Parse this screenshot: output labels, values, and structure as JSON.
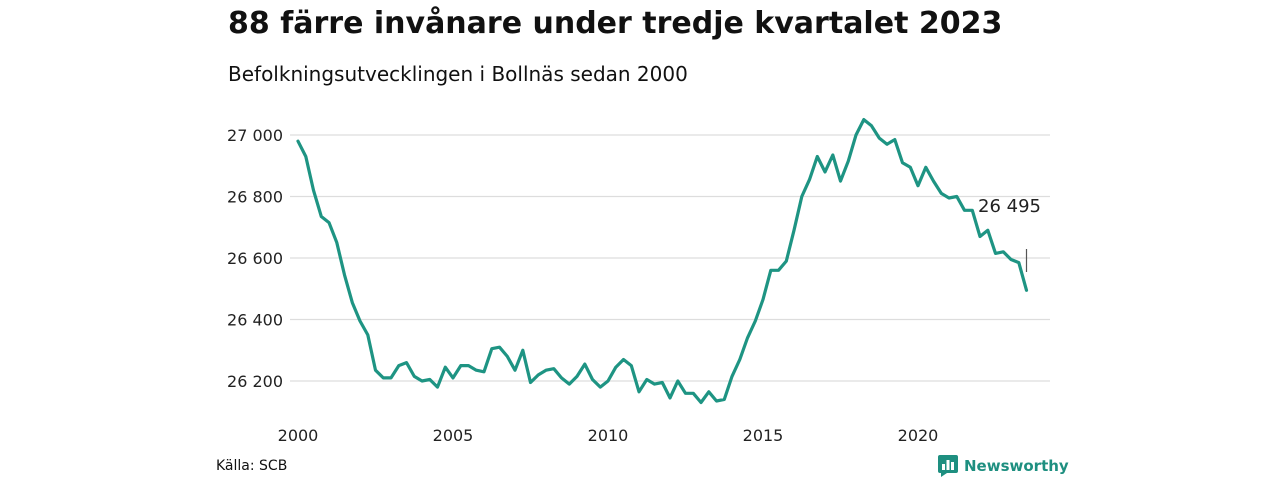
{
  "title": "88 färre invånare under tredje kvartalet 2023",
  "subtitle": "Befolkningsutvecklingen i Bollnäs sedan 2000",
  "source": "Källa: SCB",
  "brand": "Newsworthy",
  "colors": {
    "line": "#1e9483",
    "grid": "#dddddd",
    "brand": "#1e8f80"
  },
  "chart_data": {
    "type": "line",
    "x_start": 2000,
    "x_step": 0.25,
    "xlim": [
      2000,
      2024
    ],
    "ylim": [
      26100,
      27100
    ],
    "x_ticks": [
      2000,
      2005,
      2010,
      2015,
      2020
    ],
    "x_tick_labels": [
      "2000",
      "2005",
      "2010",
      "2015",
      "2020"
    ],
    "y_ticks": [
      26200,
      26400,
      26600,
      26800,
      27000
    ],
    "y_tick_labels": [
      "26 200",
      "26 400",
      "26 600",
      "26 800",
      "27 000"
    ],
    "grid": "horizontal",
    "last_label": "26 495",
    "values": [
      26980,
      26930,
      26820,
      26735,
      26715,
      26650,
      26545,
      26455,
      26395,
      26350,
      26235,
      26210,
      26210,
      26250,
      26260,
      26215,
      26200,
      26205,
      26180,
      26245,
      26210,
      26250,
      26250,
      26235,
      26230,
      26305,
      26310,
      26280,
      26235,
      26300,
      26195,
      26220,
      26235,
      26240,
      26210,
      26190,
      26215,
      26255,
      26205,
      26180,
      26200,
      26245,
      26270,
      26250,
      26165,
      26205,
      26190,
      26195,
      26145,
      26200,
      26160,
      26160,
      26130,
      26165,
      26135,
      26140,
      26215,
      26270,
      26340,
      26395,
      26465,
      26560,
      26560,
      26590,
      26690,
      26800,
      26855,
      26930,
      26880,
      26935,
      26850,
      26915,
      27000,
      27050,
      27030,
      26990,
      26970,
      26985,
      26910,
      26895,
      26835,
      26895,
      26850,
      26810,
      26795,
      26800,
      26755,
      26755,
      26670,
      26690,
      26615,
      26620,
      26595,
      26585,
      26495
    ]
  }
}
